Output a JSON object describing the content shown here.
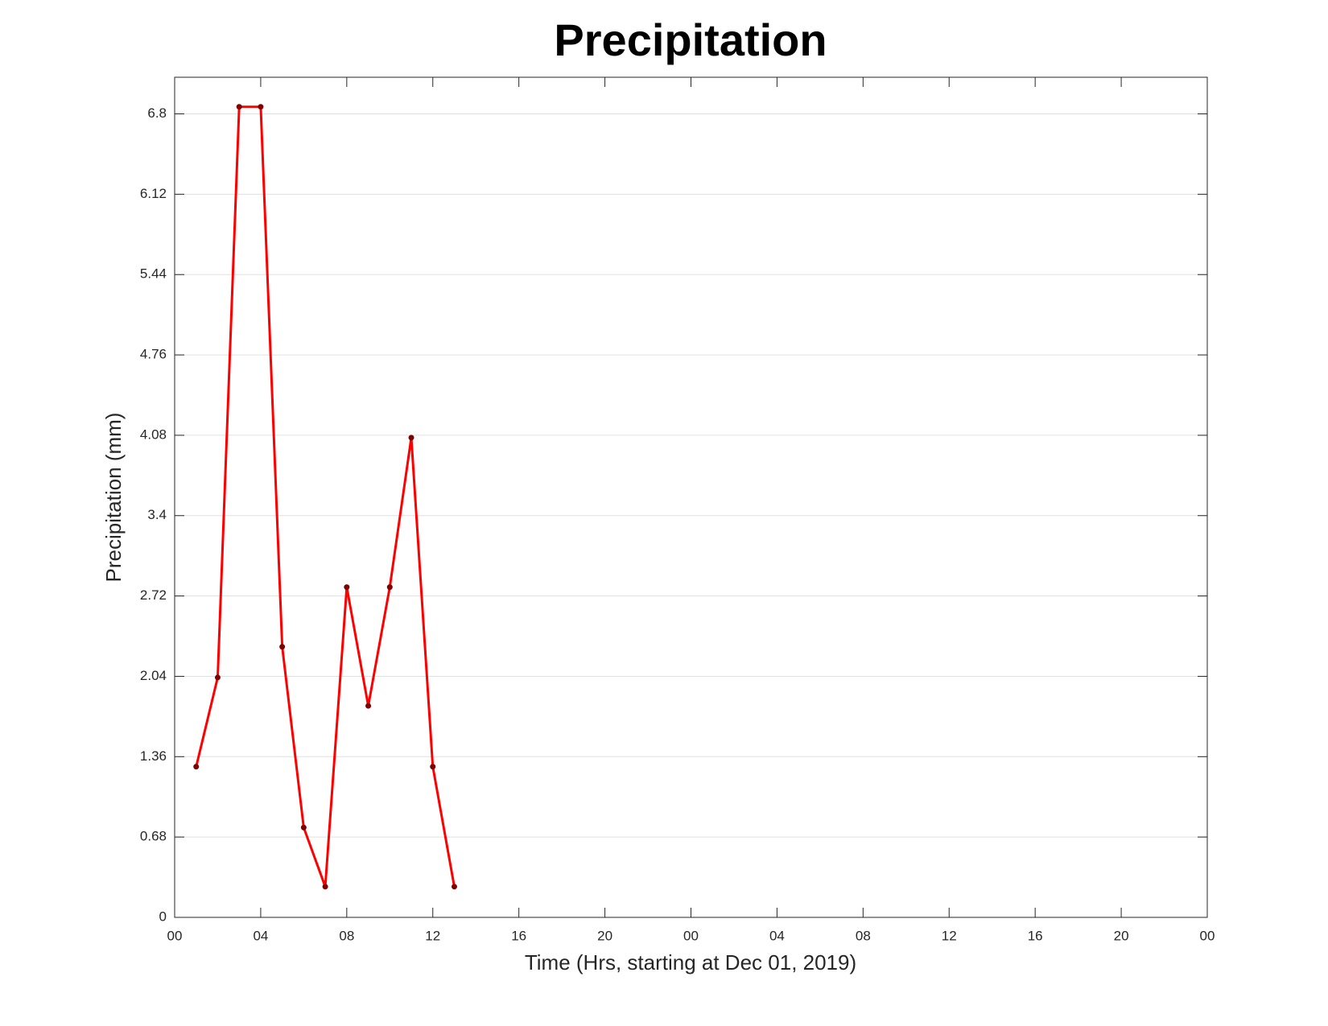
{
  "chart_data": {
    "type": "line",
    "title": "Precipitation",
    "xlabel": "Time (Hrs, starting at Dec 01, 2019)",
    "ylabel": "Precipitation (mm)",
    "x": [
      1,
      2,
      3,
      4,
      5,
      6,
      7,
      8,
      9,
      10,
      11,
      12,
      13
    ],
    "series": [
      {
        "color": "#ff0000",
        "marker_color": "#800000",
        "values": [
          1.275,
          2.03,
          6.86,
          6.86,
          2.29,
          0.76,
          0.26,
          2.795,
          1.79,
          2.795,
          4.06,
          1.275,
          0.26
        ]
      }
    ],
    "xlim": [
      0,
      48
    ],
    "xticks": [
      {
        "value": 0,
        "label": "00"
      },
      {
        "value": 4,
        "label": "04"
      },
      {
        "value": 8,
        "label": "08"
      },
      12,
      16,
      20,
      {
        "value": 24,
        "label": "00"
      },
      {
        "value": 28,
        "label": "04"
      },
      {
        "value": 32,
        "label": "08"
      },
      {
        "value": 36,
        "label": "12"
      },
      {
        "value": 40,
        "label": "16"
      },
      {
        "value": 44,
        "label": "20"
      },
      {
        "value": 48,
        "label": "00"
      }
    ],
    "ylim": [
      0,
      7.11
    ],
    "yticks": [
      0,
      0.68,
      1.36,
      2.04,
      2.72,
      3.4,
      4.08,
      4.76,
      5.44,
      6.12,
      6.8
    ],
    "grid": true
  }
}
